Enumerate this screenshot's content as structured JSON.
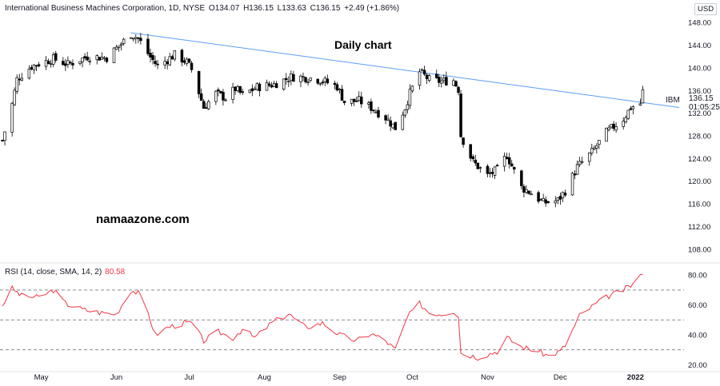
{
  "header": {
    "instrument": "International Business Machines Corporation, 1D, NYSE",
    "open": "O134.07",
    "high": "H136.15",
    "low": "L133.63",
    "close": "C136.15",
    "change": "+2.49 (+1.86%)"
  },
  "currency": "USD",
  "annotations": {
    "title": "Daily chart",
    "watermark": "namaazone.com"
  },
  "symbol_label": "IBM",
  "last_price": "136.15",
  "countdown": "01:05:25",
  "rsi_header": {
    "label": "RSI (14, close, SMA, 14, 2)",
    "value": "80.58"
  },
  "colors": {
    "up_candle": "#ffffff",
    "down_candle": "#000000",
    "trendline": "#5b9cf6",
    "rsi_line": "#f23645",
    "rsi_levels": "#787b86"
  },
  "chart_data": [
    {
      "type": "candlestick",
      "ylim": [
        106,
        150
      ],
      "yticks": [
        "108.00",
        "112.00",
        "116.00",
        "120.00",
        "124.00",
        "128.00",
        "132.00",
        "136.00",
        "140.00",
        "144.00",
        "148.00"
      ],
      "x_range": [
        "2021-04-14",
        "2022-01-21"
      ],
      "xtick_labels": [
        {
          "date": "2021-05-01",
          "label": "May"
        },
        {
          "date": "2021-06-01",
          "label": "Jun"
        },
        {
          "date": "2021-07-01",
          "label": "Jul"
        },
        {
          "date": "2021-08-01",
          "label": "Aug"
        },
        {
          "date": "2021-09-01",
          "label": "Sep"
        },
        {
          "date": "2021-10-01",
          "label": "Oct"
        },
        {
          "date": "2021-11-01",
          "label": "Nov"
        },
        {
          "date": "2021-12-01",
          "label": "Dec"
        },
        {
          "date": "2022-01-01",
          "label": "2022"
        }
      ],
      "trendline": {
        "start": {
          "date": "2021-06-07",
          "value": 146.2
        },
        "end": {
          "date": "2022-01-19",
          "value": 133.0
        }
      },
      "anchors": [
        {
          "date": "2021-04-15",
          "close": 127.2
        },
        {
          "date": "2021-04-19",
          "close": 133.6
        },
        {
          "date": "2021-04-21",
          "close": 138.0
        },
        {
          "date": "2021-04-27",
          "close": 140.3
        },
        {
          "date": "2021-05-06",
          "close": 141.6
        },
        {
          "date": "2021-05-12",
          "close": 140.6
        },
        {
          "date": "2021-05-20",
          "close": 142.0
        },
        {
          "date": "2021-05-28",
          "close": 141.8
        },
        {
          "date": "2021-06-04",
          "close": 144.7
        },
        {
          "date": "2021-06-07",
          "close": 146.0
        },
        {
          "date": "2021-06-10",
          "close": 145.2
        },
        {
          "date": "2021-06-15",
          "close": 141.9
        },
        {
          "date": "2021-06-18",
          "close": 140.3
        },
        {
          "date": "2021-06-25",
          "close": 142.3
        },
        {
          "date": "2021-06-30",
          "close": 141.0
        },
        {
          "date": "2021-07-02",
          "close": 139.7
        },
        {
          "date": "2021-07-07",
          "close": 133.0
        },
        {
          "date": "2021-07-12",
          "close": 135.5
        },
        {
          "date": "2021-07-16",
          "close": 134.7
        },
        {
          "date": "2021-07-20",
          "close": 136.3
        },
        {
          "date": "2021-07-23",
          "close": 135.2
        },
        {
          "date": "2021-07-29",
          "close": 136.6
        },
        {
          "date": "2021-08-05",
          "close": 137.1
        },
        {
          "date": "2021-08-12",
          "close": 138.4
        },
        {
          "date": "2021-08-18",
          "close": 138.3
        },
        {
          "date": "2021-08-24",
          "close": 137.9
        },
        {
          "date": "2021-08-31",
          "close": 136.7
        },
        {
          "date": "2021-09-03",
          "close": 134.0
        },
        {
          "date": "2021-09-09",
          "close": 134.2
        },
        {
          "date": "2021-09-14",
          "close": 133.0
        },
        {
          "date": "2021-09-20",
          "close": 131.2
        },
        {
          "date": "2021-09-24",
          "close": 129.4
        },
        {
          "date": "2021-09-28",
          "close": 133.0
        },
        {
          "date": "2021-09-30",
          "close": 135.5
        },
        {
          "date": "2021-10-04",
          "close": 139.3
        },
        {
          "date": "2021-10-08",
          "close": 137.9
        },
        {
          "date": "2021-10-13",
          "close": 137.6
        },
        {
          "date": "2021-10-18",
          "close": 137.8
        },
        {
          "date": "2021-10-20",
          "close": 136.2
        },
        {
          "date": "2021-10-21",
          "close": 128.1
        },
        {
          "date": "2021-10-26",
          "close": 123.4
        },
        {
          "date": "2021-11-01",
          "close": 121.0
        },
        {
          "date": "2021-11-05",
          "close": 122.0
        },
        {
          "date": "2021-11-09",
          "close": 124.6
        },
        {
          "date": "2021-11-15",
          "close": 118.9
        },
        {
          "date": "2021-11-19",
          "close": 117.9
        },
        {
          "date": "2021-11-24",
          "close": 116.2
        },
        {
          "date": "2021-11-30",
          "close": 116.6
        },
        {
          "date": "2021-12-03",
          "close": 118.3
        },
        {
          "date": "2021-12-08",
          "close": 122.5
        },
        {
          "date": "2021-12-14",
          "close": 125.1
        },
        {
          "date": "2021-12-20",
          "close": 128.6
        },
        {
          "date": "2021-12-27",
          "close": 131.0
        },
        {
          "date": "2021-12-30",
          "close": 133.0
        },
        {
          "date": "2022-01-03",
          "close": 133.7
        },
        {
          "date": "2022-01-04",
          "close": 136.15
        }
      ]
    },
    {
      "type": "line",
      "name": "RSI (14, close, SMA, 14, 2)",
      "ylim": [
        17,
        86
      ],
      "yticks": [
        "20.00",
        "40.00",
        "60.00",
        "80.00"
      ],
      "levels": [
        30,
        50,
        70
      ],
      "last_value": 80.58,
      "anchors": [
        {
          "date": "2021-04-15",
          "rsi": 60
        },
        {
          "date": "2021-04-19",
          "rsi": 71
        },
        {
          "date": "2021-04-23",
          "rsi": 66
        },
        {
          "date": "2021-04-30",
          "rsi": 65
        },
        {
          "date": "2021-05-06",
          "rsi": 70
        },
        {
          "date": "2021-05-11",
          "rsi": 61
        },
        {
          "date": "2021-05-18",
          "rsi": 57
        },
        {
          "date": "2021-05-25",
          "rsi": 55
        },
        {
          "date": "2021-06-01",
          "rsi": 54
        },
        {
          "date": "2021-06-07",
          "rsi": 70
        },
        {
          "date": "2021-06-10",
          "rsi": 68
        },
        {
          "date": "2021-06-14",
          "rsi": 55
        },
        {
          "date": "2021-06-17",
          "rsi": 40
        },
        {
          "date": "2021-06-22",
          "rsi": 45
        },
        {
          "date": "2021-06-29",
          "rsi": 48
        },
        {
          "date": "2021-07-02",
          "rsi": 48
        },
        {
          "date": "2021-07-07",
          "rsi": 36
        },
        {
          "date": "2021-07-13",
          "rsi": 42
        },
        {
          "date": "2021-07-19",
          "rsi": 38
        },
        {
          "date": "2021-07-23",
          "rsi": 44
        },
        {
          "date": "2021-07-28",
          "rsi": 38
        },
        {
          "date": "2021-08-04",
          "rsi": 48
        },
        {
          "date": "2021-08-11",
          "rsi": 54
        },
        {
          "date": "2021-08-18",
          "rsi": 45
        },
        {
          "date": "2021-08-25",
          "rsi": 48
        },
        {
          "date": "2021-09-01",
          "rsi": 40
        },
        {
          "date": "2021-09-08",
          "rsi": 36
        },
        {
          "date": "2021-09-14",
          "rsi": 41
        },
        {
          "date": "2021-09-20",
          "rsi": 36
        },
        {
          "date": "2021-09-24",
          "rsi": 30
        },
        {
          "date": "2021-09-29",
          "rsi": 52
        },
        {
          "date": "2021-10-04",
          "rsi": 61
        },
        {
          "date": "2021-10-08",
          "rsi": 55
        },
        {
          "date": "2021-10-13",
          "rsi": 54
        },
        {
          "date": "2021-10-18",
          "rsi": 56
        },
        {
          "date": "2021-10-20",
          "rsi": 53
        },
        {
          "date": "2021-10-21",
          "rsi": 28
        },
        {
          "date": "2021-10-28",
          "rsi": 25
        },
        {
          "date": "2021-11-05",
          "rsi": 29
        },
        {
          "date": "2021-11-09",
          "rsi": 38
        },
        {
          "date": "2021-11-15",
          "rsi": 32
        },
        {
          "date": "2021-11-22",
          "rsi": 29
        },
        {
          "date": "2021-11-26",
          "rsi": 26
        },
        {
          "date": "2021-12-01",
          "rsi": 29
        },
        {
          "date": "2021-12-03",
          "rsi": 33
        },
        {
          "date": "2021-12-09",
          "rsi": 53
        },
        {
          "date": "2021-12-15",
          "rsi": 60
        },
        {
          "date": "2021-12-21",
          "rsi": 66
        },
        {
          "date": "2021-12-27",
          "rsi": 70
        },
        {
          "date": "2021-12-31",
          "rsi": 74
        },
        {
          "date": "2022-01-04",
          "rsi": 80.58
        }
      ]
    }
  ]
}
